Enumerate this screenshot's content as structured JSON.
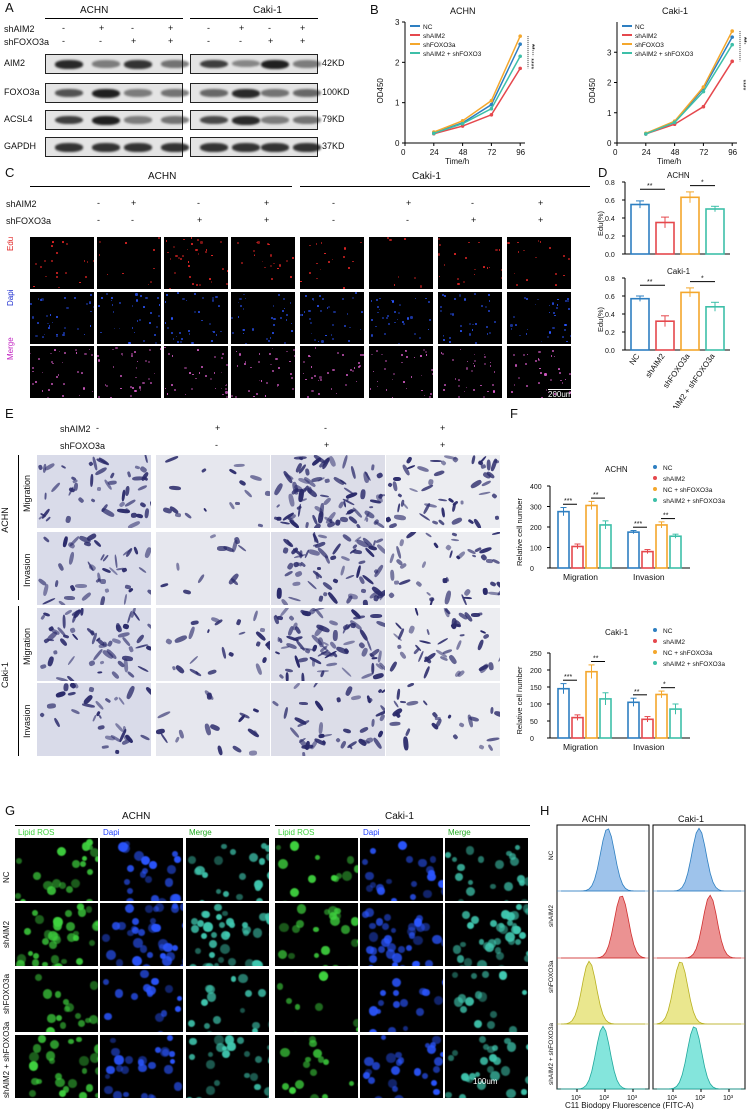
{
  "panels": {
    "A": "A",
    "B": "B",
    "C": "C",
    "D": "D",
    "E": "E",
    "F": "F",
    "G": "G",
    "H": "H"
  },
  "panelA": {
    "cell_lines": [
      "ACHN",
      "Caki-1"
    ],
    "row_labels": [
      "shAIM2",
      "shFOXO3a"
    ],
    "signs_aim2": [
      "-",
      "+",
      "-",
      "+"
    ],
    "signs_foxo": [
      "-",
      "-",
      "+",
      "+"
    ],
    "proteins": [
      "AIM2",
      "FOXO3a",
      "ACSL4",
      "GAPDH"
    ],
    "kd": [
      "42KD",
      "100KD",
      "79KD",
      "37KD"
    ]
  },
  "panelB": {
    "titles": [
      "ACHN",
      "Caki-1"
    ],
    "ylabel": "OD450",
    "xlabel": "Time/h",
    "yticks": [
      "0",
      "1",
      "2",
      "3"
    ],
    "xticks": [
      "0",
      "24",
      "48",
      "72",
      "96"
    ],
    "legend_achn": [
      "NC",
      "shAIM2",
      "shFOXO3a",
      "shAIM2 + shFOXO3"
    ],
    "legend_caki": [
      "NC",
      "shAIM2",
      "shFOXO3",
      "shAIM2 + shFOXO3"
    ],
    "sig": [
      "***",
      "****",
      "**"
    ]
  },
  "panelC": {
    "cell_lines": [
      "ACHN",
      "Caki-1"
    ],
    "row_labels": [
      "shAIM2",
      "shFOXO3a"
    ],
    "signs_aim2": [
      "-",
      "+",
      "-",
      "+",
      "-",
      "+",
      "-",
      "+"
    ],
    "signs_foxo": [
      "-",
      "-",
      "+",
      "+",
      "-",
      "-",
      "+",
      "+"
    ],
    "stains": [
      "Edu",
      "Dapi",
      "Merge"
    ],
    "scale": "200um"
  },
  "panelD": {
    "titles": [
      "ACHN",
      "Caki-1"
    ],
    "ylabel": "Edu(%)",
    "yticks": [
      "0.0",
      "0.2",
      "0.4",
      "0.6",
      "0.8"
    ],
    "categories": [
      "NC",
      "shAIM2",
      "shFOXO3a",
      "shAIM2 + shFOXO3a"
    ],
    "sig": [
      "**",
      "*"
    ]
  },
  "panelE": {
    "row_labels": [
      "shAIM2",
      "shFOXO3a"
    ],
    "signs_aim2": [
      "-",
      "+",
      "-",
      "+"
    ],
    "signs_foxo": [
      "-",
      "-",
      "+",
      "+"
    ],
    "groups": [
      "ACHN",
      "Caki-1"
    ],
    "assays": [
      "Migration",
      "Invasion"
    ]
  },
  "panelF": {
    "titles": [
      "ACHN",
      "Caki-1"
    ],
    "ylabel": "Relative cell number",
    "legend": [
      "NC",
      "shAIM2",
      "NC + shFOXO3a",
      "shAIM2 + shFOXO3a"
    ],
    "groups": [
      "Migration",
      "Invasion"
    ],
    "yticks_achn": [
      "0",
      "100",
      "200",
      "300",
      "400"
    ],
    "yticks_caki": [
      "0",
      "50",
      "100",
      "150",
      "200",
      "250"
    ],
    "sig_achn": [
      "***",
      "**",
      "***",
      "**"
    ],
    "sig_caki": [
      "***",
      "**",
      "**",
      "*"
    ]
  },
  "panelG": {
    "cell_lines": [
      "ACHN",
      "Caki-1"
    ],
    "stains": [
      "Lipid ROS",
      "Dapi",
      "Merge"
    ],
    "row_labels": [
      "NC",
      "shAIM2",
      "shFOXO3a",
      "shAIM2 + shFOXO3a"
    ],
    "scale": "100um"
  },
  "panelH": {
    "cell_lines": [
      "ACHN",
      "Caki-1"
    ],
    "row_labels": [
      "NC",
      "shAIM2",
      "shFOXO3a",
      "shAIM2 + shFOXO3a"
    ],
    "xticks": [
      "10¹",
      "10²",
      "10³"
    ],
    "xlabel": "C11 Biodopy Fluorescence (FITC-A)"
  },
  "colors": {
    "NC": "#2e7fc1",
    "shAIM2": "#e5484d",
    "shFOXO3a": "#f4a72c",
    "combo": "#3dbfa8",
    "edu": "#ff2a2a",
    "dapi": "#2b56ff",
    "ros": "#3fd23f"
  },
  "chart_data": [
    {
      "type": "line",
      "title": "ACHN",
      "xlabel": "Time/h",
      "ylabel": "OD450",
      "x": [
        24,
        48,
        72,
        96
      ],
      "xlim": [
        0,
        100
      ],
      "ylim": [
        0,
        3
      ],
      "series": [
        {
          "name": "NC",
          "values": [
            0.25,
            0.5,
            0.95,
            2.45
          ]
        },
        {
          "name": "shAIM2",
          "values": [
            0.23,
            0.42,
            0.7,
            1.85
          ]
        },
        {
          "name": "shFOXO3a",
          "values": [
            0.27,
            0.55,
            1.05,
            2.65
          ]
        },
        {
          "name": "shAIM2 + shFOXO3",
          "values": [
            0.24,
            0.48,
            0.85,
            2.15
          ]
        }
      ]
    },
    {
      "type": "line",
      "title": "Caki-1",
      "xlabel": "Time/h",
      "ylabel": "OD450",
      "x": [
        24,
        48,
        72,
        96
      ],
      "xlim": [
        0,
        100
      ],
      "ylim": [
        0,
        4
      ],
      "series": [
        {
          "name": "NC",
          "values": [
            0.3,
            0.7,
            1.8,
            3.5
          ]
        },
        {
          "name": "shAIM2",
          "values": [
            0.3,
            0.62,
            1.2,
            2.7
          ]
        },
        {
          "name": "shFOXO3",
          "values": [
            0.32,
            0.72,
            1.85,
            3.7
          ]
        },
        {
          "name": "shAIM2 + shFOXO3",
          "values": [
            0.3,
            0.68,
            1.7,
            3.25
          ]
        }
      ]
    },
    {
      "type": "bar",
      "title": "ACHN",
      "ylabel": "Edu(%)",
      "categories": [
        "NC",
        "shAIM2",
        "shFOXO3a",
        "shAIM2 + shFOXO3a"
      ],
      "values": [
        0.55,
        0.35,
        0.63,
        0.5
      ],
      "errors": [
        0.04,
        0.06,
        0.06,
        0.03
      ],
      "ylim": [
        0,
        0.8
      ]
    },
    {
      "type": "bar",
      "title": "Caki-1",
      "ylabel": "Edu(%)",
      "categories": [
        "NC",
        "shAIM2",
        "shFOXO3a",
        "shAIM2 + shFOXO3a"
      ],
      "values": [
        0.57,
        0.32,
        0.64,
        0.48
      ],
      "errors": [
        0.03,
        0.06,
        0.05,
        0.05
      ],
      "ylim": [
        0,
        0.8
      ]
    },
    {
      "type": "bar",
      "title": "ACHN",
      "ylabel": "Relative cell number",
      "categories": [
        "Migration",
        "Invasion"
      ],
      "ylim": [
        0,
        400
      ],
      "series": [
        {
          "name": "NC",
          "values": [
            275,
            175
          ],
          "errors": [
            20,
            8
          ]
        },
        {
          "name": "shAIM2",
          "values": [
            105,
            80
          ],
          "errors": [
            12,
            10
          ]
        },
        {
          "name": "NC + shFOXO3a",
          "values": [
            305,
            210
          ],
          "errors": [
            20,
            15
          ]
        },
        {
          "name": "shAIM2 + shFOXO3a",
          "values": [
            210,
            155
          ],
          "errors": [
            20,
            10
          ]
        }
      ]
    },
    {
      "type": "bar",
      "title": "Caki-1",
      "ylabel": "Relative cell number",
      "categories": [
        "Migration",
        "Invasion"
      ],
      "ylim": [
        0,
        250
      ],
      "series": [
        {
          "name": "NC",
          "values": [
            145,
            105
          ],
          "errors": [
            15,
            12
          ]
        },
        {
          "name": "shAIM2",
          "values": [
            60,
            55
          ],
          "errors": [
            8,
            8
          ]
        },
        {
          "name": "NC + shFOXO3a",
          "values": [
            195,
            128
          ],
          "errors": [
            20,
            10
          ]
        },
        {
          "name": "shAIM2 + shFOXO3a",
          "values": [
            115,
            85
          ],
          "errors": [
            18,
            15
          ]
        }
      ]
    }
  ]
}
